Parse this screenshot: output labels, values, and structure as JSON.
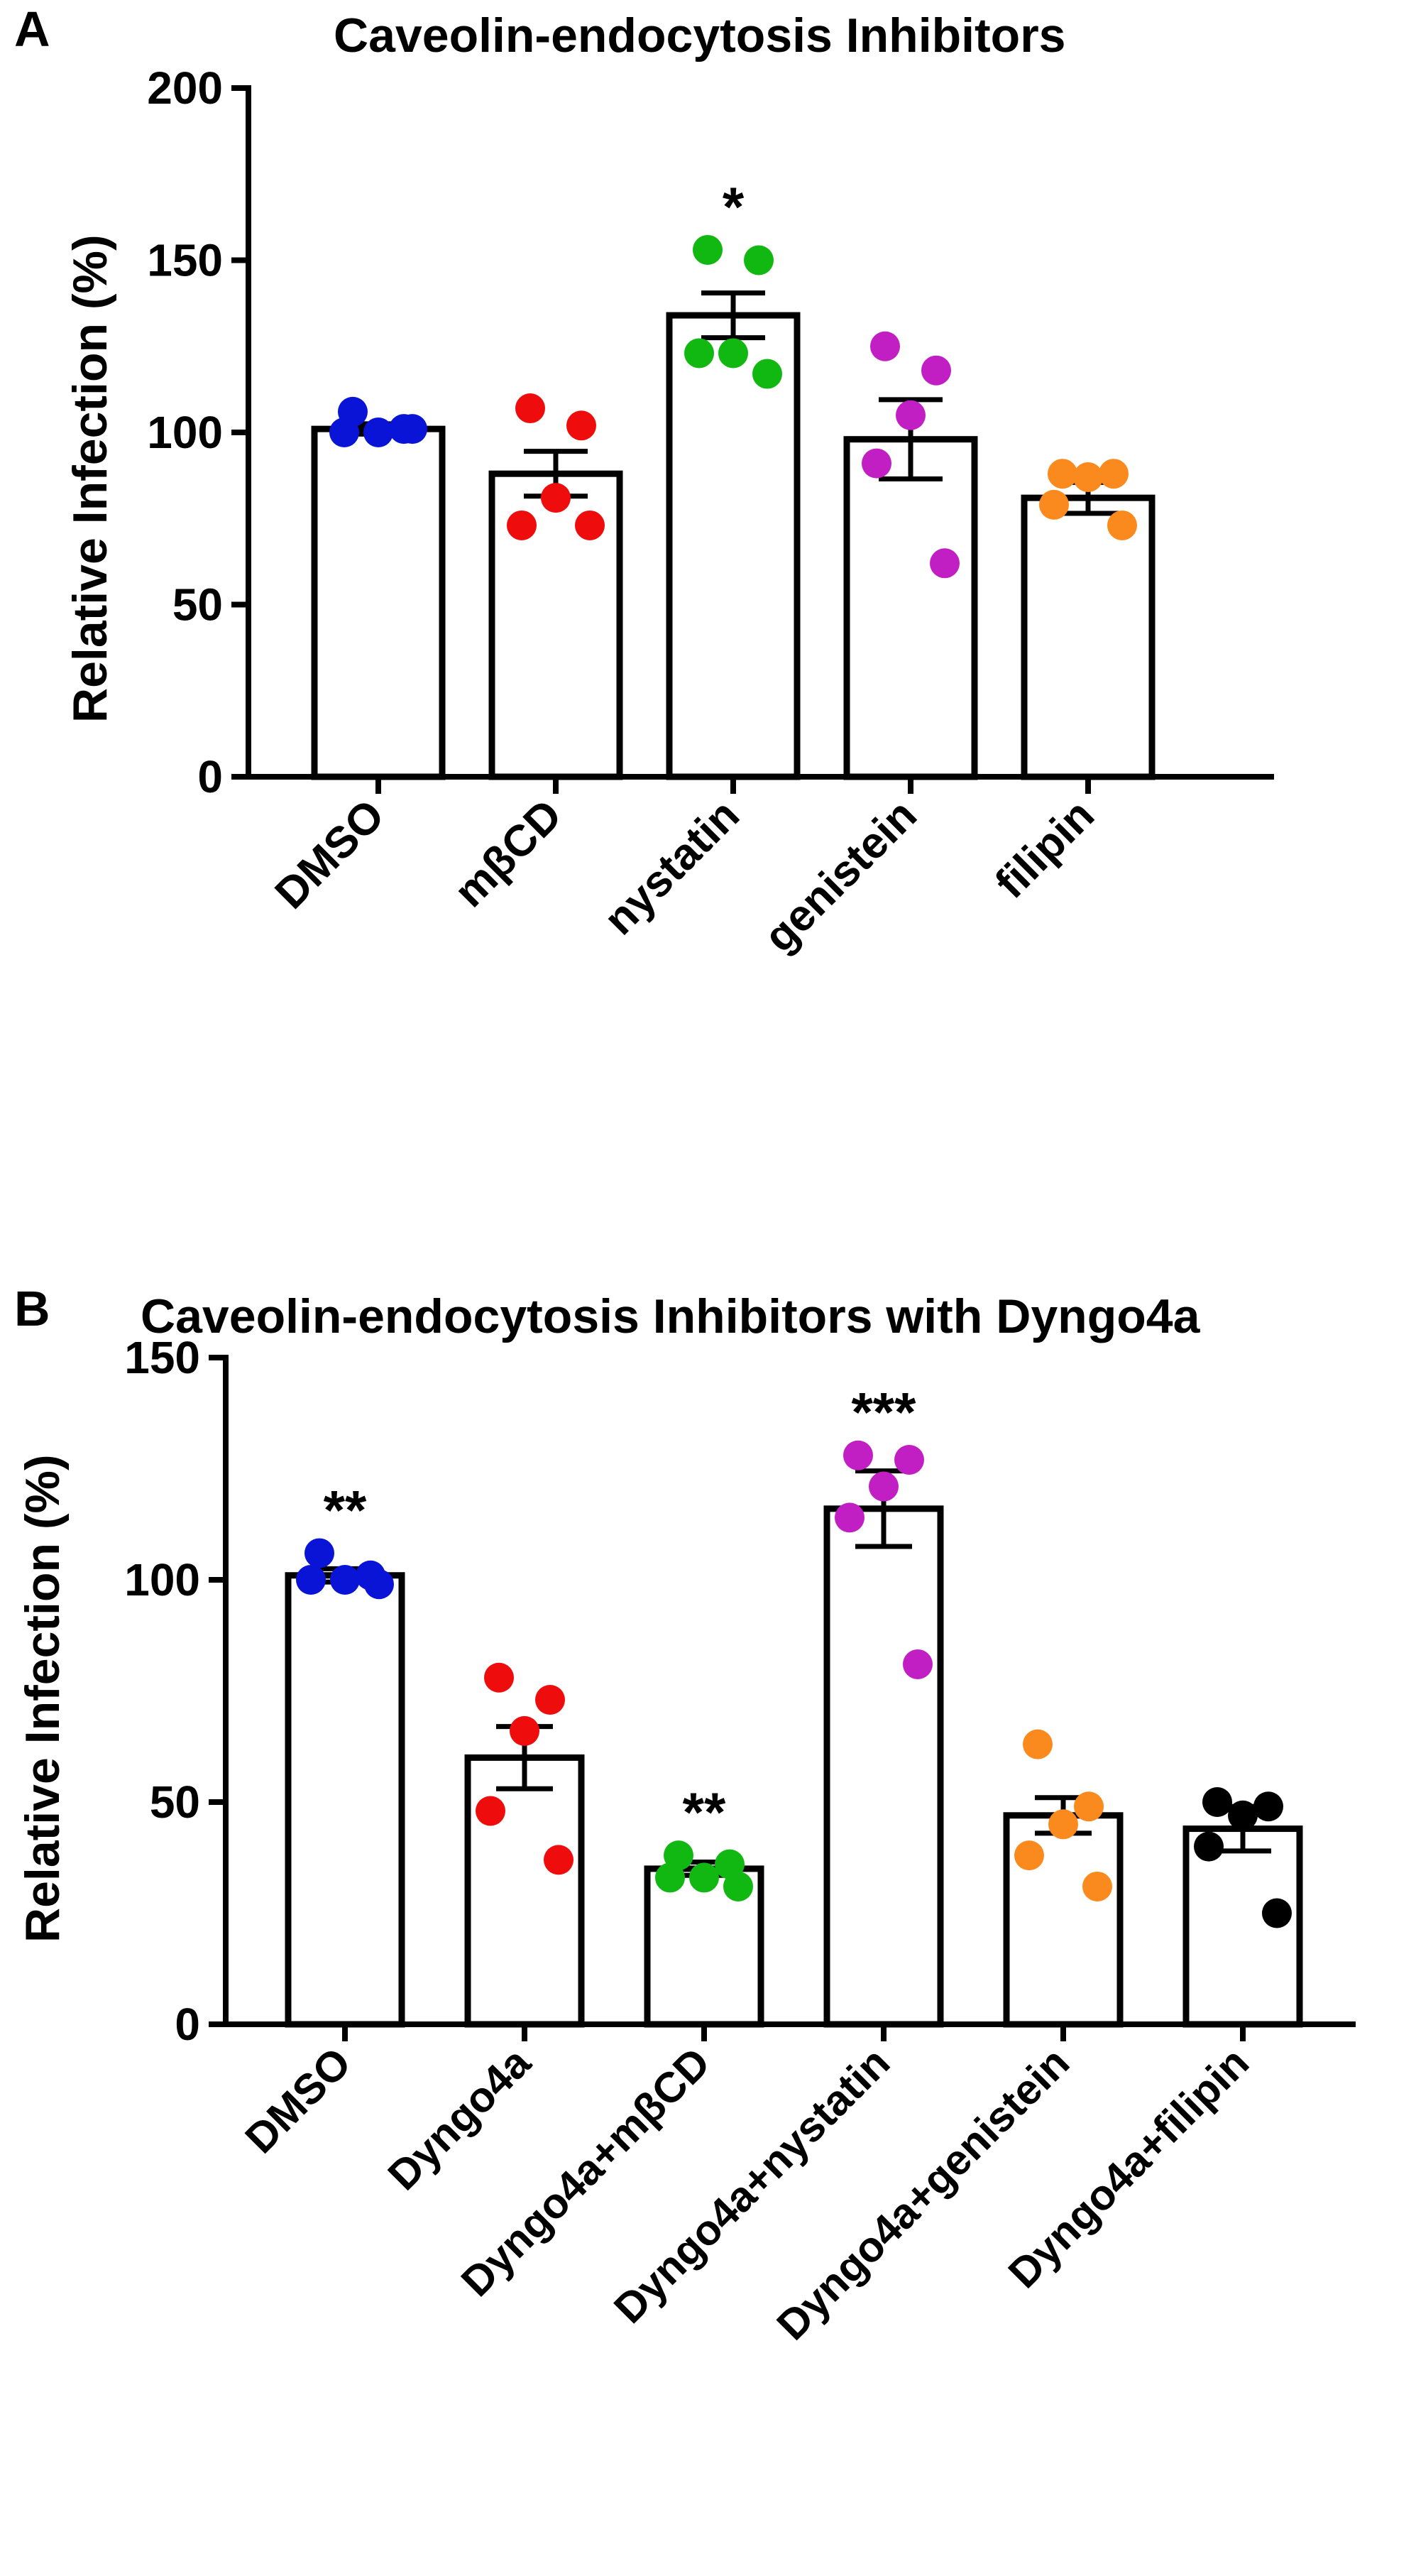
{
  "chart_data": [
    {
      "panel": "A",
      "type": "bar",
      "title": "Caveolin-endocytosis Inhibitors",
      "ylabel": "Relative Infection (%)",
      "xlabel": "",
      "ylim": [
        0,
        200
      ],
      "yticks": [
        "0",
        "50",
        "100",
        "150",
        "200"
      ],
      "categories": [
        "DMSO",
        "mβCD",
        "nystatin",
        "genistein",
        "filipin"
      ],
      "values": [
        101,
        88,
        134,
        98,
        81
      ],
      "sem": [
        1.5,
        6.5,
        6.5,
        11.5,
        4.5
      ],
      "colors": [
        "#0a14d6",
        "#ee0c0c",
        "#12b812",
        "#c11fc4",
        "#fb8a1e"
      ],
      "points": [
        [
          106,
          101,
          100,
          100,
          101
        ],
        [
          107,
          102,
          81,
          73,
          73
        ],
        [
          153,
          150,
          123,
          123,
          117
        ],
        [
          125,
          118,
          105,
          91,
          62
        ],
        [
          88,
          88,
          87,
          79,
          73
        ]
      ],
      "significance": [
        "",
        "",
        "*",
        "",
        ""
      ],
      "grid": false
    },
    {
      "panel": "B",
      "type": "bar",
      "title": "Caveolin-endocytosis Inhibitors with Dyngo4a",
      "ylabel": "Relative Infection (%)",
      "xlabel": "",
      "ylim": [
        0,
        150
      ],
      "yticks": [
        "0",
        "50",
        "100",
        "150"
      ],
      "categories": [
        "DMSO",
        "Dyngo4a",
        "Dyngo4a+mβCD",
        "Dyngo4a+nystatin",
        "Dyngo4a+genistein",
        "Dyngo4a+filipin"
      ],
      "values": [
        101,
        60,
        35,
        116,
        47,
        44
      ],
      "sem": [
        1.5,
        7,
        1.5,
        8.5,
        4,
        5
      ],
      "colors": [
        "#0a14d6",
        "#ee0c0c",
        "#12b812",
        "#c11fc4",
        "#fb8a1e",
        "#000000"
      ],
      "points": [
        [
          106,
          101,
          100,
          100,
          99
        ],
        [
          78,
          73,
          66,
          48,
          37
        ],
        [
          38,
          36,
          33,
          33,
          31
        ],
        [
          128,
          127,
          121,
          114,
          81
        ],
        [
          63,
          49,
          45,
          38,
          31
        ],
        [
          50,
          49,
          47,
          40,
          25
        ]
      ],
      "significance": [
        "**",
        "",
        "**",
        "***",
        "",
        ""
      ],
      "grid": false
    }
  ],
  "panelA": {
    "letter": "A"
  },
  "panelB": {
    "letter": "B"
  }
}
